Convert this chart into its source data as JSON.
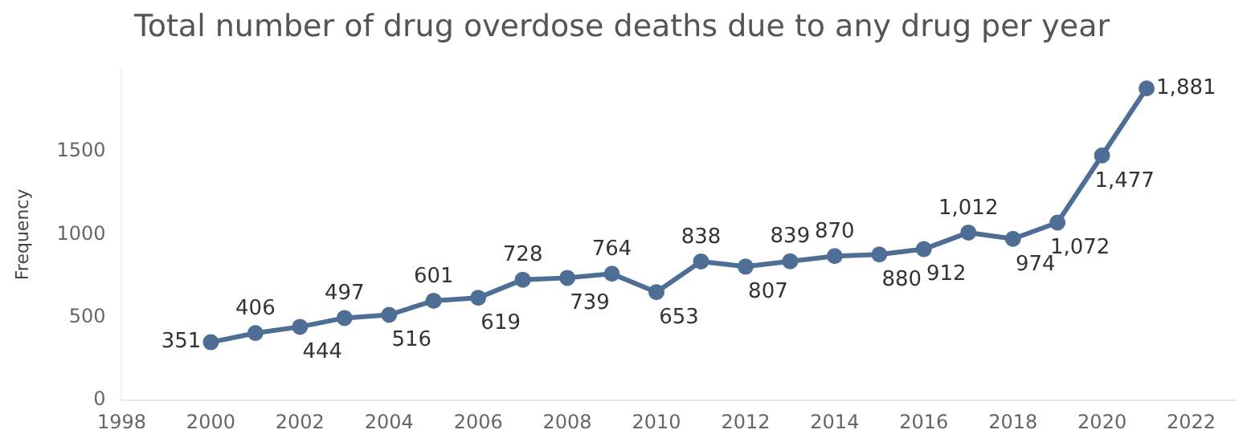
{
  "chart_data": {
    "type": "line",
    "title": "Total number of drug overdose deaths due to any drug per year",
    "ylabel": "Frequency",
    "x": [
      2000,
      2001,
      2002,
      2003,
      2004,
      2005,
      2006,
      2007,
      2008,
      2009,
      2010,
      2011,
      2012,
      2013,
      2014,
      2015,
      2016,
      2017,
      2018,
      2019,
      2020,
      2021
    ],
    "series": [
      {
        "color": "#4e6e96",
        "values": [
          351,
          406,
          444,
          497,
          516,
          601,
          619,
          728,
          739,
          764,
          653,
          838,
          807,
          839,
          870,
          880,
          912,
          1012,
          974,
          1072,
          1477,
          1881
        ],
        "value_labels": [
          "351",
          "406",
          "444",
          "497",
          "516",
          "601",
          "619",
          "728",
          "739",
          "764",
          "653",
          "838",
          "807",
          "839",
          "870",
          "880",
          "912",
          "1,012",
          "974",
          "1,072",
          "1,477",
          "1,881"
        ]
      }
    ],
    "xlim": [
      1998,
      2023
    ],
    "xticks": [
      1998,
      2000,
      2002,
      2004,
      2006,
      2008,
      2010,
      2012,
      2014,
      2016,
      2018,
      2020,
      2022
    ],
    "ylim": [
      0,
      2000
    ],
    "yticks": [
      0,
      500,
      1000,
      1500
    ],
    "grid": false,
    "legend": false,
    "marker": "circle",
    "line_style": "solid"
  }
}
